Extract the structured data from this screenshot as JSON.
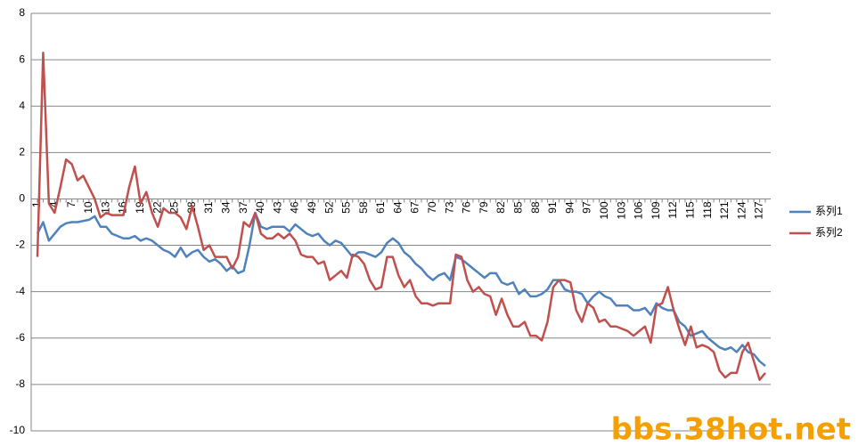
{
  "chart_data": {
    "type": "line",
    "categories": [
      1,
      null,
      null,
      4,
      null,
      null,
      7,
      null,
      null,
      10,
      null,
      null,
      13,
      null,
      null,
      16,
      null,
      null,
      19,
      null,
      null,
      22,
      null,
      null,
      25,
      null,
      null,
      28,
      null,
      null,
      31,
      null,
      null,
      34,
      null,
      null,
      37,
      null,
      null,
      40,
      null,
      null,
      43,
      null,
      null,
      46,
      null,
      null,
      49,
      null,
      null,
      52,
      null,
      null,
      55,
      null,
      null,
      58,
      null,
      null,
      61,
      null,
      null,
      64,
      null,
      null,
      67,
      null,
      null,
      70,
      null,
      null,
      73,
      null,
      null,
      76,
      null,
      null,
      79,
      null,
      null,
      82,
      null,
      null,
      85,
      null,
      null,
      88,
      null,
      null,
      91,
      null,
      null,
      94,
      null,
      null,
      97,
      null,
      null,
      100,
      null,
      null,
      103,
      null,
      null,
      106,
      null,
      null,
      109,
      null,
      null,
      112,
      null,
      null,
      115,
      null,
      null,
      118,
      null,
      null,
      121,
      null,
      null,
      124,
      null,
      null,
      127,
      null
    ],
    "series": [
      {
        "name": "系列1",
        "color": "#4f81bd",
        "values": [
          -1.5,
          -1.0,
          -1.8,
          -1.5,
          -1.2,
          -1.05,
          -1.0,
          -1.0,
          -0.95,
          -0.9,
          -0.75,
          -1.2,
          -1.2,
          -1.5,
          -1.6,
          -1.7,
          -1.7,
          -1.6,
          -1.8,
          -1.7,
          -1.8,
          -2.0,
          -2.2,
          -2.3,
          -2.5,
          -2.1,
          -2.5,
          -2.3,
          -2.2,
          -2.5,
          -2.7,
          -2.6,
          -2.8,
          -3.1,
          -2.9,
          -3.2,
          -3.1,
          -2.0,
          -0.6,
          -1.2,
          -1.3,
          -1.2,
          -1.2,
          -1.2,
          -1.4,
          -1.1,
          -1.3,
          -1.5,
          -1.6,
          -1.5,
          -1.8,
          -2.0,
          -1.8,
          -1.9,
          -2.2,
          -2.5,
          -2.3,
          -2.3,
          -2.4,
          -2.5,
          -2.3,
          -1.9,
          -1.7,
          -1.9,
          -2.3,
          -2.5,
          -2.8,
          -3.0,
          -3.3,
          -3.5,
          -3.3,
          -3.2,
          -3.5,
          -2.5,
          -2.6,
          -2.8,
          -3.0,
          -3.2,
          -3.4,
          -3.2,
          -3.2,
          -3.6,
          -3.7,
          -3.6,
          -4.1,
          -3.9,
          -4.2,
          -4.2,
          -4.1,
          -3.9,
          -3.5,
          -3.5,
          -3.9,
          -4.0,
          -4.0,
          -4.1,
          -4.5,
          -4.2,
          -4.0,
          -4.2,
          -4.3,
          -4.6,
          -4.6,
          -4.6,
          -4.8,
          -4.8,
          -4.7,
          -5.0,
          -4.5,
          -4.7,
          -4.8,
          -4.8,
          -5.3,
          -5.5,
          -5.9,
          -5.8,
          -5.7,
          -6.0,
          -6.2,
          -6.4,
          -6.5,
          -6.4,
          -6.6,
          -6.3,
          -6.6,
          -6.7,
          -7.0,
          -7.2
        ]
      },
      {
        "name": "系列2",
        "color": "#c0504d",
        "values": [
          -2.5,
          6.3,
          -0.2,
          -0.6,
          0.5,
          1.7,
          1.5,
          0.8,
          1.0,
          0.5,
          0.0,
          -0.8,
          -0.6,
          -0.7,
          -0.7,
          -0.7,
          0.5,
          1.4,
          -0.2,
          0.3,
          -0.6,
          -1.2,
          -0.4,
          -0.6,
          -0.6,
          -0.8,
          -1.3,
          -0.3,
          -1.2,
          -2.2,
          -2.0,
          -2.5,
          -2.5,
          -2.5,
          -3.0,
          -2.5,
          -1.0,
          -1.2,
          -0.6,
          -1.5,
          -1.7,
          -1.7,
          -1.5,
          -1.7,
          -1.5,
          -1.8,
          -2.4,
          -2.5,
          -2.5,
          -2.8,
          -2.7,
          -3.5,
          -3.3,
          -3.1,
          -3.4,
          -2.4,
          -2.5,
          -2.8,
          -3.5,
          -3.9,
          -3.8,
          -2.5,
          -2.5,
          -3.3,
          -3.8,
          -3.5,
          -4.2,
          -4.5,
          -4.5,
          -4.6,
          -4.5,
          -4.5,
          -4.5,
          -2.4,
          -2.5,
          -3.5,
          -4.0,
          -3.8,
          -4.1,
          -4.2,
          -5.0,
          -4.3,
          -5.0,
          -5.5,
          -5.5,
          -5.3,
          -5.9,
          -5.9,
          -6.1,
          -5.3,
          -3.8,
          -3.5,
          -3.5,
          -3.6,
          -4.8,
          -5.3,
          -4.5,
          -4.7,
          -5.3,
          -5.2,
          -5.5,
          -5.5,
          -5.6,
          -5.7,
          -5.9,
          -5.7,
          -5.5,
          -6.2,
          -4.6,
          -4.5,
          -3.8,
          -4.8,
          -5.6,
          -6.3,
          -5.5,
          -6.4,
          -6.3,
          -6.4,
          -6.6,
          -7.4,
          -7.7,
          -7.5,
          -7.5,
          -6.6,
          -6.2,
          -7.0,
          -7.8,
          -7.5
        ]
      }
    ],
    "ylim": [
      -10,
      8
    ],
    "yticks": [
      -10,
      -8,
      -6,
      -4,
      -2,
      0,
      2,
      4,
      6,
      8
    ],
    "grid": true,
    "legend": "right"
  },
  "watermark": "bbs.38hot.net"
}
